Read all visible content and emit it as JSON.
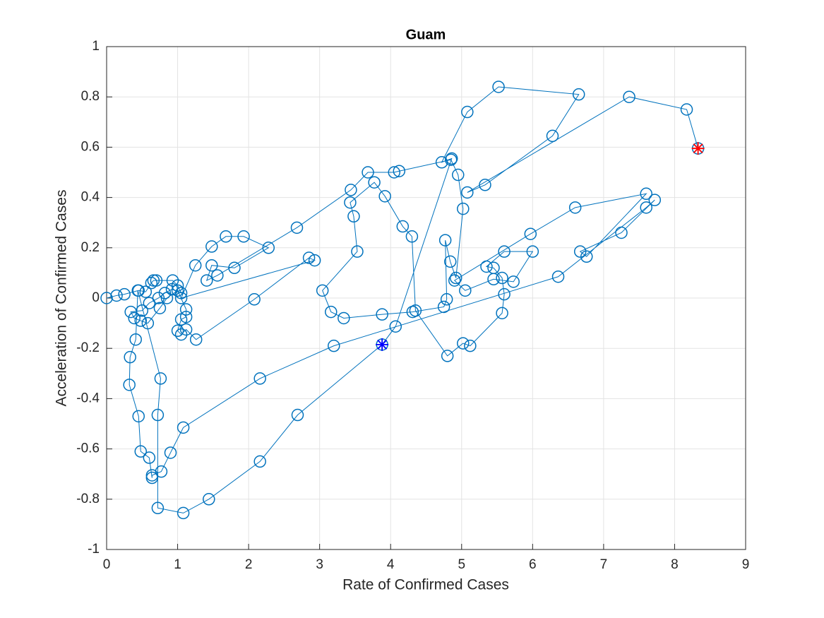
{
  "chart_data": {
    "type": "line",
    "title": "Guam",
    "xlabel": "Rate of Confirmed Cases",
    "ylabel": "Acceleration of Confirmed Cases",
    "xlim": [
      0,
      9
    ],
    "ylim": [
      -1,
      1
    ],
    "xticks": [
      0,
      1,
      2,
      3,
      4,
      5,
      6,
      7,
      8,
      9
    ],
    "yticks": [
      -1,
      -0.8,
      -0.6,
      -0.4,
      -0.2,
      0,
      0.2,
      0.4,
      0.6,
      0.8,
      1
    ],
    "grid": true,
    "box": true,
    "series": [
      {
        "color": "#0072bd",
        "marker": "o",
        "line": true,
        "x": [
          0,
          0.14,
          0.25,
          0.45,
          0.55,
          0.63,
          0.66,
          0.7,
          0.93,
          1.0,
          1.05,
          0.92,
          0.82,
          0.73,
          0.6,
          0.5,
          0.34,
          0.39,
          0.48,
          0.58,
          0.75,
          0.85,
          1.0,
          1.12,
          1.12,
          1.05,
          1.0,
          1.05,
          1.12,
          1.26,
          2.08,
          2.85,
          2.93,
          1.05,
          1.25,
          1.48,
          1.68,
          1.93,
          2.28,
          1.8,
          1.48,
          1.41,
          1.56,
          2.68,
          3.44,
          3.68,
          4.05,
          4.12,
          4.85,
          4.95,
          5.02,
          4.92,
          4.84,
          4.77,
          4.79,
          4.75,
          4.31,
          3.88,
          3.34,
          3.16,
          3.04,
          3.53,
          3.48,
          3.43,
          3.77,
          3.92,
          4.17,
          4.3,
          4.35,
          4.8,
          5.02,
          5.12,
          5.57,
          5.6,
          5.57,
          5.45,
          5.35,
          5.6,
          6.0,
          5.73,
          5.45,
          5.05,
          4.9,
          5.97,
          6.6,
          7.6,
          6.76,
          6.67,
          7.25,
          7.72,
          7.6,
          6.36,
          3.2,
          2.16,
          1.08,
          0.9,
          0.77,
          0.64,
          0.64,
          0.6,
          0.48,
          0.45,
          0.32,
          0.33,
          0.41,
          0.44,
          0.76,
          0.72,
          0.72,
          1.08,
          1.44,
          2.16,
          2.69,
          3.88,
          4.07,
          4.86,
          4.72,
          5.08,
          5.52,
          6.65,
          6.28,
          5.33,
          5.08,
          7.36,
          8.17,
          8.33
        ],
        "values": [
          0,
          0.01,
          0.015,
          0.03,
          0.025,
          0.06,
          0.07,
          0.07,
          0.07,
          0.05,
          0.02,
          0.035,
          0.02,
          0,
          -0.02,
          -0.05,
          -0.055,
          -0.08,
          -0.09,
          -0.1,
          -0.04,
          0,
          0.03,
          -0.045,
          -0.075,
          -0.085,
          -0.13,
          -0.145,
          -0.125,
          -0.165,
          -0.005,
          0.16,
          0.15,
          0,
          0.13,
          0.205,
          0.245,
          0.245,
          0.2,
          0.12,
          0.13,
          0.07,
          0.09,
          0.28,
          0.43,
          0.5,
          0.5,
          0.505,
          0.55,
          0.49,
          0.355,
          0.08,
          0.145,
          0.23,
          -0.005,
          -0.035,
          -0.055,
          -0.065,
          -0.08,
          -0.055,
          0.03,
          0.185,
          0.325,
          0.38,
          0.46,
          0.405,
          0.285,
          0.245,
          -0.05,
          -0.23,
          -0.18,
          -0.19,
          -0.06,
          0.015,
          0.08,
          0.12,
          0.125,
          0.185,
          0.185,
          0.065,
          0.075,
          0.03,
          0.07,
          0.255,
          0.36,
          0.415,
          0.165,
          0.185,
          0.26,
          0.39,
          0.36,
          0.085,
          -0.19,
          -0.32,
          -0.515,
          -0.615,
          -0.69,
          -0.705,
          -0.715,
          -0.635,
          -0.61,
          -0.47,
          -0.345,
          -0.235,
          -0.165,
          0.03,
          -0.32,
          -0.465,
          -0.835,
          -0.855,
          -0.8,
          -0.65,
          -0.465,
          -0.185,
          -0.113,
          0.555,
          0.54,
          0.74,
          0.84,
          0.81,
          0.645,
          0.45,
          0.42,
          0.8,
          0.75,
          0.595
        ]
      },
      {
        "color": "#0000ff",
        "marker": "*",
        "line": false,
        "x": [
          3.88
        ],
        "values": [
          -0.185
        ]
      },
      {
        "color": "#ff0000",
        "marker": "*",
        "line": false,
        "x": [
          8.33
        ],
        "values": [
          0.595
        ]
      }
    ]
  }
}
